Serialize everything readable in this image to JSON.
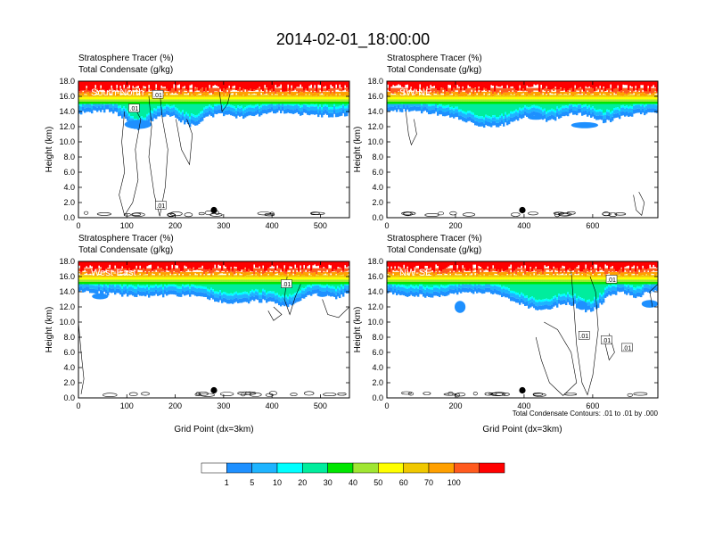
{
  "title": "2014-02-01_18:00:00",
  "colors": {
    "levels": [
      "#ffffff",
      "#1e90ff",
      "#1eb4ff",
      "#00ffff",
      "#00ed9d",
      "#00e600",
      "#a0e632",
      "#ffff00",
      "#f0c800",
      "#ffa000",
      "#ff5a1e",
      "#ff0000"
    ],
    "contour": "#000000"
  },
  "chart_data": [
    {
      "type": "heatmap",
      "panel_label": "South-North",
      "subtitle_1": "Stratosphere Tracer   (%)",
      "subtitle_2": "Total Condensate   (g/kg)",
      "ylabel": "Height (km)",
      "xlabel": "",
      "xlim": [
        0,
        560
      ],
      "ylim": [
        0,
        18
      ],
      "x_ticks": [
        0,
        100,
        200,
        300,
        400,
        500
      ],
      "x_tick_labels": [
        "0",
        "100",
        "200",
        "300",
        "400",
        "500"
      ],
      "y_ticks": [
        0,
        2,
        4,
        6,
        8,
        10,
        12,
        14,
        16,
        18
      ],
      "y_tick_labels": [
        "0.0",
        "2.0",
        "4.0",
        "6.0",
        "8.0",
        "10.0",
        "12.0",
        "14.0",
        "16.0",
        "18.0"
      ],
      "marker": {
        "x": 280,
        "y": 1.0
      },
      "contour_labels": [
        {
          "text": ".01",
          "x": 164,
          "y": 16.2
        },
        {
          "text": ".01",
          "x": 115,
          "y": 14.4
        },
        {
          "text": ".01",
          "x": 170,
          "y": 1.6
        }
      ]
    },
    {
      "type": "heatmap",
      "panel_label": "SW-NE",
      "subtitle_1": "Stratosphere Tracer   (%)",
      "subtitle_2": "Total Condensate   (g/kg)",
      "ylabel": "Height (km)",
      "xlabel": "",
      "xlim": [
        0,
        790
      ],
      "ylim": [
        0,
        18
      ],
      "x_ticks": [
        0,
        200,
        400,
        600
      ],
      "x_tick_labels": [
        "0",
        "200",
        "400",
        "600"
      ],
      "y_ticks": [
        0,
        2,
        4,
        6,
        8,
        10,
        12,
        14,
        16,
        18
      ],
      "y_tick_labels": [
        "0.0",
        "2.0",
        "4.0",
        "6.0",
        "8.0",
        "10.0",
        "12.0",
        "14.0",
        "16.0",
        "18.0"
      ],
      "marker": {
        "x": 395,
        "y": 1.0
      },
      "contour_labels": []
    },
    {
      "type": "heatmap",
      "panel_label": "West-East",
      "subtitle_1": "Stratosphere Tracer   (%)",
      "subtitle_2": "Total Condensate   (g/kg)",
      "ylabel": "Height (km)",
      "xlabel": "Grid Point (dx=3km)",
      "xlim": [
        0,
        560
      ],
      "ylim": [
        0,
        18
      ],
      "x_ticks": [
        0,
        100,
        200,
        300,
        400,
        500
      ],
      "x_tick_labels": [
        "0",
        "100",
        "200",
        "300",
        "400",
        "500"
      ],
      "y_ticks": [
        0,
        2,
        4,
        6,
        8,
        10,
        12,
        14,
        16,
        18
      ],
      "y_tick_labels": [
        "0.0",
        "2.0",
        "4.0",
        "6.0",
        "8.0",
        "10.0",
        "12.0",
        "14.0",
        "16.0",
        "18.0"
      ],
      "marker": {
        "x": 280,
        "y": 1.0
      },
      "contour_labels": [
        {
          "text": ".01",
          "x": 430,
          "y": 15.0
        }
      ]
    },
    {
      "type": "heatmap",
      "panel_label": "NW-SE",
      "subtitle_1": "Stratosphere Tracer   (%)",
      "subtitle_2": "Total Condensate   (g/kg)",
      "ylabel": "Height (km)",
      "xlabel": "Grid Point (dx=3km)",
      "note": "Total Condensate Contours: .01 to .01 by .000",
      "xlim": [
        0,
        790
      ],
      "ylim": [
        0,
        18
      ],
      "x_ticks": [
        0,
        200,
        400,
        600
      ],
      "x_tick_labels": [
        "0",
        "200",
        "400",
        "600"
      ],
      "y_ticks": [
        0,
        2,
        4,
        6,
        8,
        10,
        12,
        14,
        16,
        18
      ],
      "y_tick_labels": [
        "0.0",
        "2.0",
        "4.0",
        "6.0",
        "8.0",
        "10.0",
        "12.0",
        "14.0",
        "16.0",
        "18.0"
      ],
      "marker": {
        "x": 395,
        "y": 1.0
      },
      "contour_labels": [
        {
          "text": ".01",
          "x": 575,
          "y": 8.2
        },
        {
          "text": ".01",
          "x": 640,
          "y": 7.6
        },
        {
          "text": ".01",
          "x": 700,
          "y": 6.6
        },
        {
          "text": ".01",
          "x": 655,
          "y": 15.6
        }
      ]
    }
  ],
  "colorbar": {
    "labels": [
      "1",
      "5",
      "10",
      "20",
      "30",
      "40",
      "50",
      "60",
      "70",
      "100"
    ]
  }
}
